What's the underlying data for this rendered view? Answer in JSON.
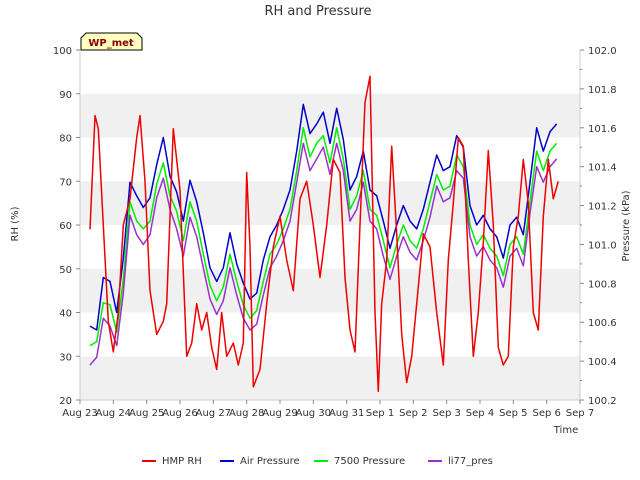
{
  "chart_data": {
    "type": "line",
    "title": "RH and Pressure",
    "xlabel": "Time",
    "ylabel": "RH (%)",
    "y2label": "Pressure (kPa)",
    "badge": "WP_met",
    "x_ticks": [
      "Aug 23",
      "Aug 24",
      "Aug 25",
      "Aug 26",
      "Aug 27",
      "Aug 28",
      "Aug 29",
      "Aug 30",
      "Aug 31",
      "Sep 1",
      "Sep 2",
      "Sep 3",
      "Sep 4",
      "Sep 5",
      "Sep 6",
      "Sep 7"
    ],
    "y_ticks": [
      20,
      30,
      40,
      50,
      60,
      70,
      80,
      90,
      100
    ],
    "y2_ticks": [
      "100.2",
      "100.4",
      "100.6",
      "100.8",
      "101.0",
      "101.2",
      "101.4",
      "101.6",
      "101.8",
      "102.0"
    ],
    "ylim": [
      20,
      100
    ],
    "y2lim": [
      100.2,
      102.0
    ],
    "xlim_days": [
      0,
      15
    ],
    "grid": "horizontal bands",
    "legend_position": "bottom",
    "series": [
      {
        "name": "HMP RH",
        "color": "#ee0000",
        "axis": "left",
        "x": [
          0.3,
          0.45,
          0.55,
          0.7,
          0.85,
          1.0,
          1.15,
          1.3,
          1.5,
          1.7,
          1.8,
          1.95,
          2.1,
          2.3,
          2.5,
          2.6,
          2.7,
          2.8,
          3.0,
          3.2,
          3.35,
          3.5,
          3.65,
          3.8,
          3.95,
          4.1,
          4.25,
          4.4,
          4.6,
          4.75,
          4.9,
          5.0,
          5.1,
          5.2,
          5.4,
          5.6,
          5.8,
          6.0,
          6.2,
          6.4,
          6.6,
          6.8,
          7.0,
          7.2,
          7.4,
          7.6,
          7.8,
          7.95,
          8.1,
          8.25,
          8.4,
          8.55,
          8.7,
          8.85,
          8.95,
          9.05,
          9.2,
          9.35,
          9.5,
          9.65,
          9.8,
          9.95,
          10.1,
          10.3,
          10.5,
          10.7,
          10.9,
          11.05,
          11.2,
          11.35,
          11.5,
          11.65,
          11.8,
          11.95,
          12.1,
          12.25,
          12.4,
          12.55,
          12.7,
          12.85,
          13.0,
          13.15,
          13.3,
          13.45,
          13.6,
          13.75,
          13.9,
          14.05,
          14.2,
          14.35
        ],
        "values": [
          59,
          85,
          82,
          60,
          38,
          31,
          40,
          60,
          66,
          80,
          85,
          70,
          45,
          35,
          38,
          42,
          62,
          82,
          68,
          30,
          33,
          42,
          36,
          40,
          32,
          27,
          40,
          30,
          33,
          28,
          33,
          72,
          55,
          23,
          27,
          42,
          55,
          62,
          52,
          45,
          66,
          70,
          60,
          48,
          60,
          75,
          72,
          48,
          36,
          31,
          60,
          88,
          94,
          40,
          22,
          42,
          52,
          78,
          58,
          35,
          24,
          30,
          42,
          58,
          55,
          40,
          28,
          52,
          65,
          80,
          78,
          52,
          30,
          40,
          56,
          77,
          60,
          32,
          28,
          30,
          55,
          62,
          75,
          65,
          40,
          36,
          62,
          75,
          66,
          70
        ]
      },
      {
        "name": "Air Pressure",
        "color": "#0000cc",
        "axis": "right",
        "x": [
          0.3,
          0.5,
          0.7,
          0.9,
          1.1,
          1.3,
          1.5,
          1.7,
          1.9,
          2.1,
          2.3,
          2.5,
          2.7,
          2.9,
          3.1,
          3.3,
          3.5,
          3.7,
          3.9,
          4.1,
          4.3,
          4.5,
          4.7,
          4.9,
          5.1,
          5.3,
          5.5,
          5.7,
          5.9,
          6.1,
          6.3,
          6.5,
          6.7,
          6.9,
          7.1,
          7.3,
          7.5,
          7.7,
          7.9,
          8.1,
          8.3,
          8.5,
          8.7,
          8.9,
          9.1,
          9.3,
          9.5,
          9.7,
          9.9,
          10.1,
          10.3,
          10.5,
          10.7,
          10.9,
          11.1,
          11.3,
          11.5,
          11.7,
          11.9,
          12.1,
          12.3,
          12.5,
          12.7,
          12.9,
          13.1,
          13.3,
          13.5,
          13.7,
          13.9,
          14.1,
          14.3
        ],
        "values": [
          100.58,
          100.56,
          100.83,
          100.81,
          100.65,
          100.93,
          101.32,
          101.25,
          101.19,
          101.24,
          101.41,
          101.55,
          101.35,
          101.27,
          101.12,
          101.33,
          101.22,
          101.06,
          100.88,
          100.81,
          100.88,
          101.06,
          100.9,
          100.8,
          100.72,
          100.75,
          100.92,
          101.04,
          101.1,
          101.18,
          101.28,
          101.48,
          101.72,
          101.57,
          101.62,
          101.68,
          101.52,
          101.7,
          101.54,
          101.28,
          101.35,
          101.48,
          101.28,
          101.25,
          101.12,
          100.98,
          101.1,
          101.2,
          101.12,
          101.08,
          101.18,
          101.32,
          101.46,
          101.38,
          101.4,
          101.56,
          101.5,
          101.2,
          101.1,
          101.15,
          101.08,
          101.04,
          100.93,
          101.1,
          101.14,
          101.05,
          101.32,
          101.6,
          101.48,
          101.58,
          101.62
        ]
      },
      {
        "name": "7500 Pressure",
        "color": "#00ee00",
        "axis": "right",
        "x": [
          0.3,
          0.5,
          0.7,
          0.9,
          1.1,
          1.3,
          1.5,
          1.7,
          1.9,
          2.1,
          2.3,
          2.5,
          2.7,
          2.9,
          3.1,
          3.3,
          3.5,
          3.7,
          3.9,
          4.1,
          4.3,
          4.5,
          4.7,
          4.9,
          5.1,
          5.3,
          5.5,
          5.7,
          5.9,
          6.1,
          6.3,
          6.5,
          6.7,
          6.9,
          7.1,
          7.3,
          7.5,
          7.7,
          7.9,
          8.1,
          8.3,
          8.5,
          8.7,
          8.9,
          9.1,
          9.3,
          9.5,
          9.7,
          9.9,
          10.1,
          10.3,
          10.5,
          10.7,
          10.9,
          11.1,
          11.3,
          11.5,
          11.7,
          11.9,
          12.1,
          12.3,
          12.5,
          12.7,
          12.9,
          13.1,
          13.3,
          13.5,
          13.7,
          13.9,
          14.1,
          14.3
        ],
        "values": [
          100.48,
          100.5,
          100.7,
          100.69,
          100.55,
          100.82,
          101.22,
          101.12,
          101.08,
          101.12,
          101.31,
          101.42,
          101.25,
          101.17,
          101.02,
          101.22,
          101.12,
          100.95,
          100.79,
          100.71,
          100.78,
          100.95,
          100.81,
          100.69,
          100.62,
          100.66,
          100.81,
          100.95,
          101.0,
          101.08,
          101.18,
          101.38,
          101.6,
          101.45,
          101.52,
          101.56,
          101.42,
          101.6,
          101.44,
          101.18,
          101.25,
          101.38,
          101.18,
          101.15,
          101.02,
          100.88,
          101.0,
          101.1,
          101.02,
          100.98,
          101.08,
          101.22,
          101.36,
          101.28,
          101.3,
          101.46,
          101.4,
          101.1,
          101.0,
          101.05,
          100.98,
          100.94,
          100.84,
          101.0,
          101.04,
          100.95,
          101.22,
          101.48,
          101.38,
          101.48,
          101.52
        ]
      },
      {
        "name": "li77_pres",
        "color": "#9932cc",
        "axis": "right",
        "x": [
          0.3,
          0.5,
          0.7,
          0.9,
          1.1,
          1.3,
          1.5,
          1.7,
          1.9,
          2.1,
          2.3,
          2.5,
          2.7,
          2.9,
          3.1,
          3.3,
          3.5,
          3.7,
          3.9,
          4.1,
          4.3,
          4.5,
          4.7,
          4.9,
          5.1,
          5.3,
          5.5,
          5.7,
          5.9,
          6.1,
          6.3,
          6.5,
          6.7,
          6.9,
          7.1,
          7.3,
          7.5,
          7.7,
          7.9,
          8.1,
          8.3,
          8.5,
          8.7,
          8.9,
          9.1,
          9.3,
          9.5,
          9.7,
          9.9,
          10.1,
          10.3,
          10.5,
          10.7,
          10.9,
          11.1,
          11.3,
          11.5,
          11.7,
          11.9,
          12.1,
          12.3,
          12.5,
          12.7,
          12.9,
          13.1,
          13.3,
          13.5,
          13.7,
          13.9,
          14.1,
          14.3
        ],
        "values": [
          100.38,
          100.42,
          100.62,
          100.58,
          100.48,
          100.75,
          101.15,
          101.05,
          101.0,
          101.05,
          101.24,
          101.34,
          101.18,
          101.08,
          100.94,
          101.14,
          101.04,
          100.88,
          100.72,
          100.64,
          100.71,
          100.88,
          100.74,
          100.62,
          100.56,
          100.59,
          100.74,
          100.88,
          100.94,
          101.02,
          101.12,
          101.32,
          101.52,
          101.38,
          101.44,
          101.5,
          101.36,
          101.52,
          101.38,
          101.12,
          101.18,
          101.32,
          101.12,
          101.08,
          100.94,
          100.82,
          100.94,
          101.04,
          100.96,
          100.92,
          101.02,
          101.14,
          101.3,
          101.22,
          101.24,
          101.38,
          101.34,
          101.04,
          100.94,
          100.99,
          100.92,
          100.88,
          100.78,
          100.94,
          100.98,
          100.89,
          101.16,
          101.4,
          101.32,
          101.4,
          101.44
        ]
      }
    ]
  }
}
